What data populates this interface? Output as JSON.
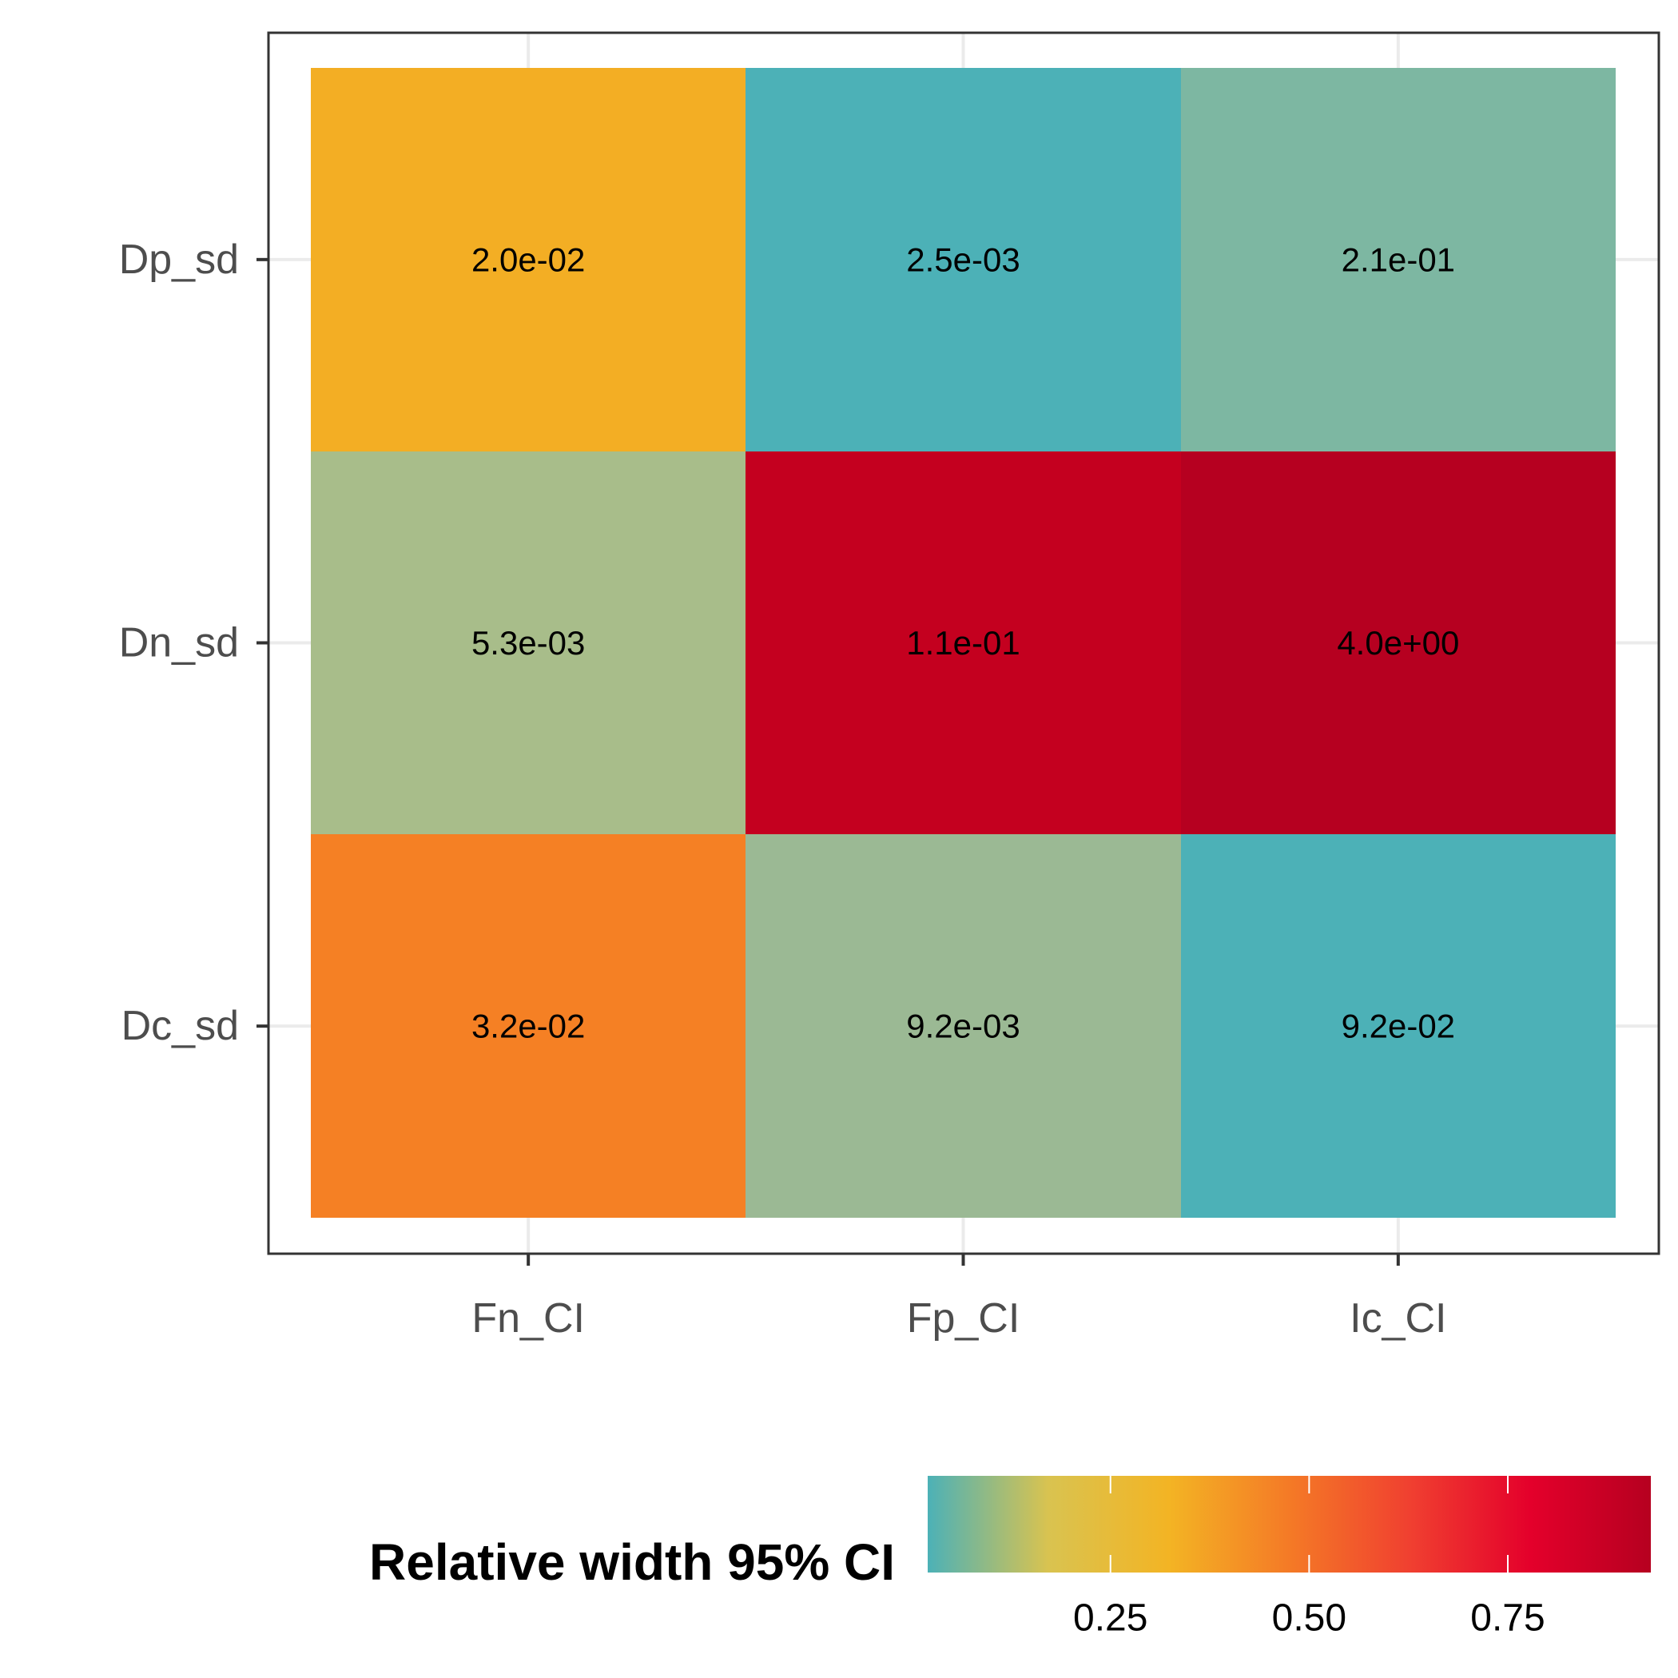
{
  "chart_data": {
    "type": "heatmap",
    "x_categories": [
      "Fn_CI",
      "Fp_CI",
      "Ic_CI"
    ],
    "y_categories": [
      "Dp_sd",
      "Dn_sd",
      "Dc_sd"
    ],
    "cells": [
      {
        "x": "Fn_CI",
        "y": "Dp_sd",
        "label": "2.0e-02",
        "color": "#f3ae24"
      },
      {
        "x": "Fp_CI",
        "y": "Dp_sd",
        "label": "2.5e-03",
        "color": "#4cb1b7"
      },
      {
        "x": "Ic_CI",
        "y": "Dp_sd",
        "label": "2.1e-01",
        "color": "#7db7a2"
      },
      {
        "x": "Fn_CI",
        "y": "Dn_sd",
        "label": "5.3e-03",
        "color": "#a8bd8a"
      },
      {
        "x": "Fp_CI",
        "y": "Dn_sd",
        "label": "1.1e-01",
        "color": "#c4001f"
      },
      {
        "x": "Ic_CI",
        "y": "Dn_sd",
        "label": "4.0e+00",
        "color": "#b60020"
      },
      {
        "x": "Fn_CI",
        "y": "Dc_sd",
        "label": "3.2e-02",
        "color": "#f58024"
      },
      {
        "x": "Fp_CI",
        "y": "Dc_sd",
        "label": "9.2e-03",
        "color": "#9bb994"
      },
      {
        "x": "Ic_CI",
        "y": "Dc_sd",
        "label": "9.2e-02",
        "color": "#4cb1b7"
      }
    ],
    "grid": true,
    "legend": {
      "title": "Relative width 95% CI",
      "position": "bottom",
      "range": [
        0.02,
        0.93
      ],
      "ticks": [
        {
          "value": 0.25,
          "label": "0.25"
        },
        {
          "value": 0.5,
          "label": "0.50"
        },
        {
          "value": 0.75,
          "label": "0.75"
        }
      ],
      "colors": [
        "#4cb1b7",
        "#d9c350",
        "#f3b424",
        "#f47a26",
        "#f04030",
        "#e4002b",
        "#b60020"
      ]
    }
  }
}
